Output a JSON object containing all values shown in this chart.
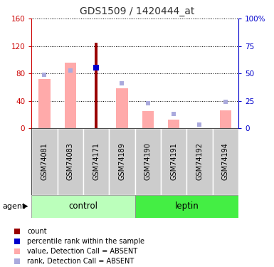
{
  "title": "GDS1509 / 1420444_at",
  "samples": [
    "GSM74081",
    "GSM74083",
    "GSM74171",
    "GSM74189",
    "GSM74190",
    "GSM74191",
    "GSM74192",
    "GSM74194"
  ],
  "count_values": [
    0,
    0,
    125,
    0,
    0,
    0,
    0,
    0
  ],
  "count_color": "#990000",
  "percentile_rank_values": [
    0,
    0,
    55,
    0,
    0,
    0,
    0,
    0
  ],
  "percentile_rank_color": "#0000cc",
  "value_absent": [
    72,
    96,
    0,
    58,
    25,
    13,
    0,
    26
  ],
  "value_absent_color": "#ffaaaa",
  "rank_absent": [
    49,
    53,
    0,
    41,
    23,
    13,
    3,
    24
  ],
  "rank_absent_color": "#aaaadd",
  "ylim_left": [
    0,
    160
  ],
  "ylim_right": [
    0,
    100
  ],
  "yticks_left": [
    0,
    40,
    80,
    120,
    160
  ],
  "ytick_labels_left": [
    "0",
    "40",
    "80",
    "120",
    "160"
  ],
  "yticks_right": [
    0,
    25,
    50,
    75,
    100
  ],
  "ytick_labels_right": [
    "0",
    "25",
    "50",
    "75",
    "100%"
  ],
  "left_tick_color": "#cc0000",
  "right_tick_color": "#0000cc",
  "control_label": "control",
  "leptin_label": "leptin",
  "group_color_control": "#bbffbb",
  "group_color_leptin": "#44ee44",
  "sample_bg_color": "#cccccc",
  "agent_label": "agent",
  "legend_items": [
    {
      "label": "count",
      "color": "#990000"
    },
    {
      "label": "percentile rank within the sample",
      "color": "#0000cc"
    },
    {
      "label": "value, Detection Call = ABSENT",
      "color": "#ffaaaa"
    },
    {
      "label": "rank, Detection Call = ABSENT",
      "color": "#aaaadd"
    }
  ]
}
